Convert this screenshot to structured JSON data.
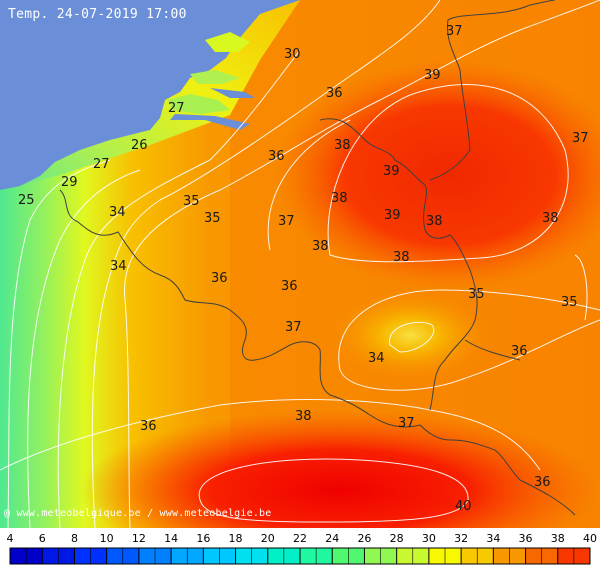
{
  "title": "Temp. 24-07-2019 17:00",
  "credit": "@ www.meteobelgique.be / www.meteobelgie.be",
  "legend": {
    "ticks": [
      "4",
      "6",
      "8",
      "10",
      "12",
      "14",
      "16",
      "18",
      "20",
      "22",
      "24",
      "26",
      "28",
      "30",
      "32",
      "34",
      "36",
      "38",
      "40"
    ],
    "colors": [
      "#0000c8",
      "#0018e6",
      "#0030ff",
      "#0058ff",
      "#0080ff",
      "#00a8ff",
      "#00c8ff",
      "#00e0f0",
      "#00f0c8",
      "#20f8a0",
      "#50f870",
      "#90f850",
      "#c8f830",
      "#f8f800",
      "#f8c800",
      "#f89800",
      "#f86800",
      "#f83800",
      "#f00000"
    ]
  },
  "colors": {
    "sea": "#6a8fd8",
    "hot": "#f83000",
    "warm": "#f89000",
    "mild": "#f8d000",
    "cool": "#c8f040",
    "cooler": "#60e890"
  },
  "temperature_labels": [
    {
      "id": "t30",
      "value": "30"
    },
    {
      "id": "t37a",
      "value": "37"
    },
    {
      "id": "t39a",
      "value": "39"
    },
    {
      "id": "t36a",
      "value": "36"
    },
    {
      "id": "t27a",
      "value": "27"
    },
    {
      "id": "t37b",
      "value": "37"
    },
    {
      "id": "t26",
      "value": "26"
    },
    {
      "id": "t38a",
      "value": "38"
    },
    {
      "id": "t36b",
      "value": "36"
    },
    {
      "id": "t27b",
      "value": "27"
    },
    {
      "id": "t39b",
      "value": "39"
    },
    {
      "id": "t29",
      "value": "29"
    },
    {
      "id": "t25",
      "value": "25"
    },
    {
      "id": "t35a",
      "value": "35"
    },
    {
      "id": "t38b",
      "value": "38"
    },
    {
      "id": "t34a",
      "value": "34"
    },
    {
      "id": "t39c",
      "value": "39"
    },
    {
      "id": "t35b",
      "value": "35"
    },
    {
      "id": "t37c",
      "value": "37"
    },
    {
      "id": "t38c",
      "value": "38"
    },
    {
      "id": "t38d",
      "value": "38"
    },
    {
      "id": "t38e",
      "value": "38"
    },
    {
      "id": "t38f",
      "value": "38"
    },
    {
      "id": "t34b",
      "value": "34"
    },
    {
      "id": "t36c",
      "value": "36"
    },
    {
      "id": "t36d",
      "value": "36"
    },
    {
      "id": "t35c",
      "value": "35"
    },
    {
      "id": "t35d",
      "value": "35"
    },
    {
      "id": "t37d",
      "value": "37"
    },
    {
      "id": "t36e",
      "value": "36"
    },
    {
      "id": "t34c",
      "value": "34"
    },
    {
      "id": "t38g",
      "value": "38"
    },
    {
      "id": "t36f",
      "value": "36"
    },
    {
      "id": "t37e",
      "value": "37"
    },
    {
      "id": "t36g",
      "value": "36"
    },
    {
      "id": "t40",
      "value": "40"
    }
  ]
}
